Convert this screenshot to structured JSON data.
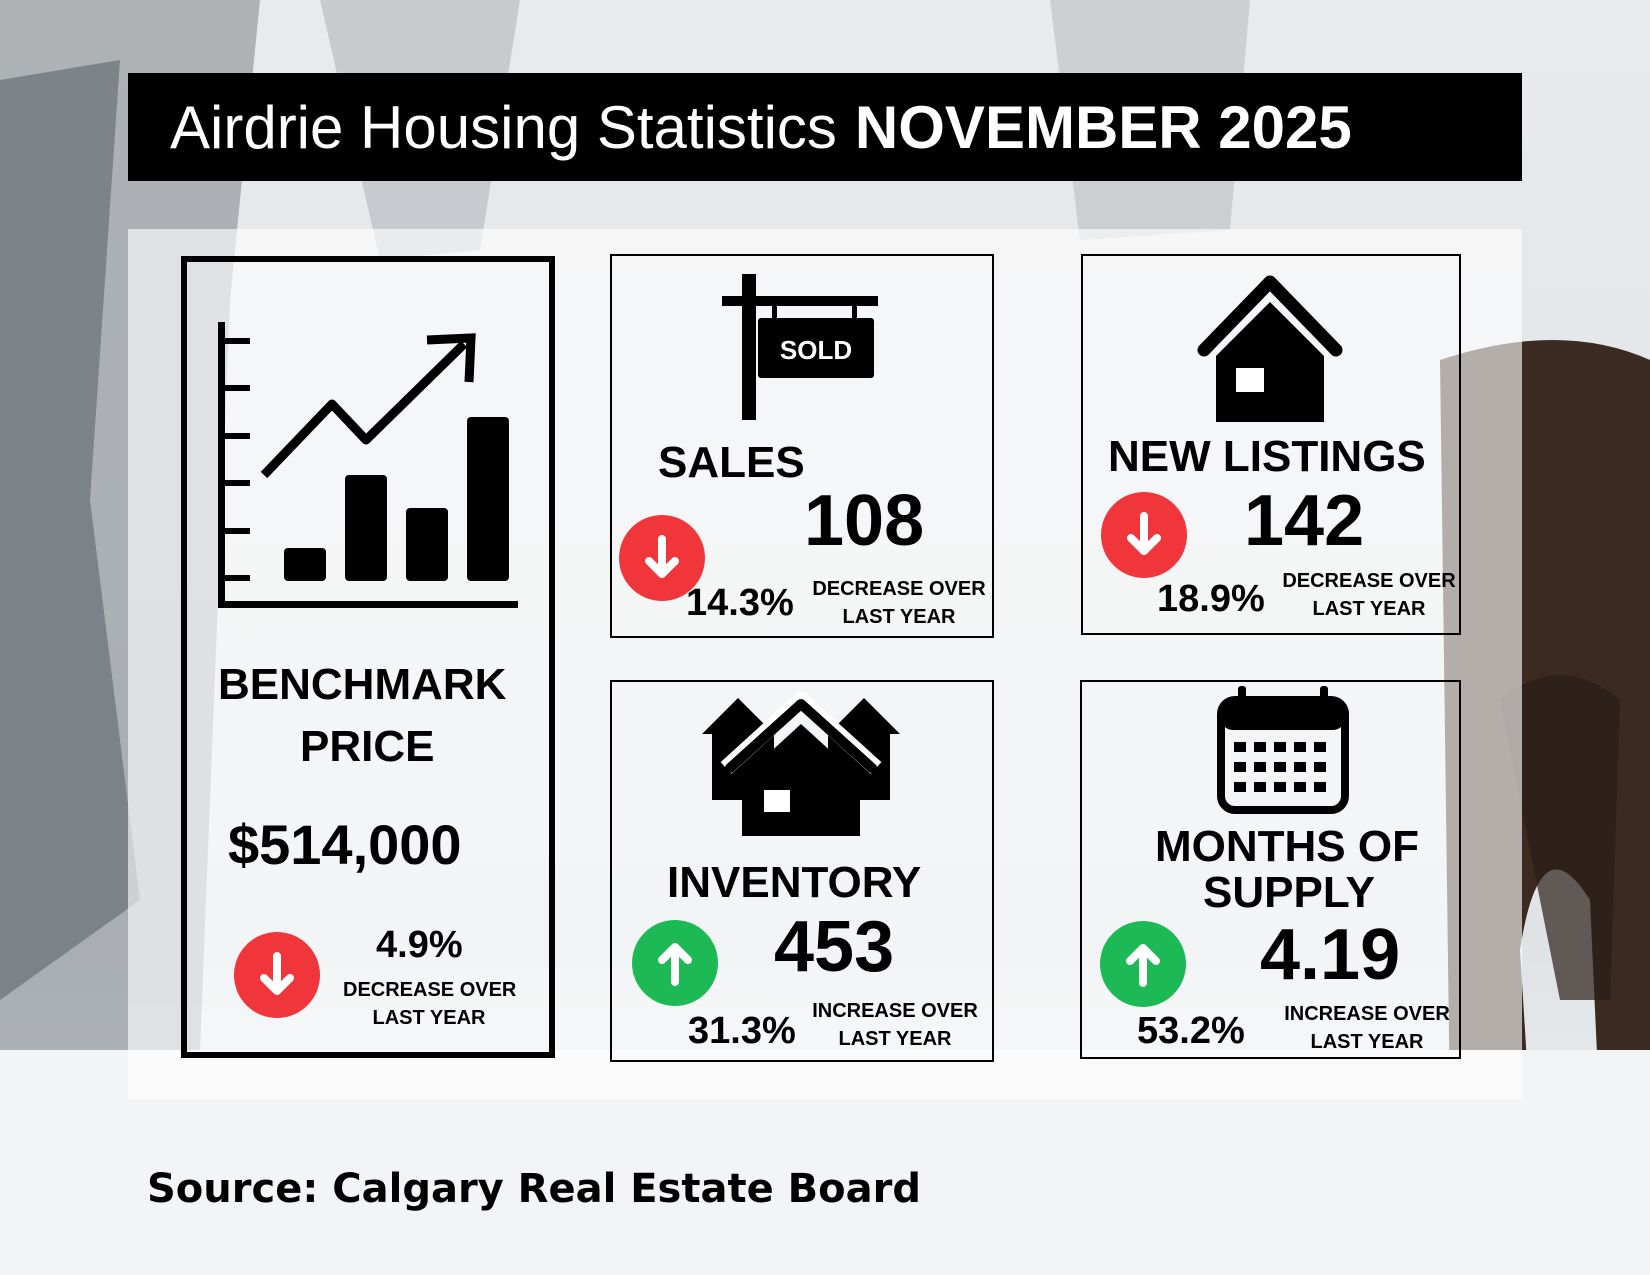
{
  "title": {
    "prefix": "Airdrie Housing Statistics",
    "period": "NOVEMBER 2025"
  },
  "colors": {
    "decrease": "#f0353b",
    "increase": "#1db954",
    "title_bg": "#000000"
  },
  "benchmark": {
    "label_line1": "BENCHMARK",
    "label_line2": "PRICE",
    "value": "$514,000",
    "change_pct": "4.9%",
    "change_line1": "DECREASE OVER",
    "change_line2": "LAST YEAR",
    "icon": "bar-chart-up-arrow-icon",
    "direction": "down"
  },
  "sales": {
    "label": "SALES",
    "value": "108",
    "change_pct": "14.3%",
    "change_line1": "DECREASE OVER",
    "change_line2": "LAST YEAR",
    "sign_text": "SOLD",
    "icon": "sold-sign-icon",
    "direction": "down"
  },
  "new_listings": {
    "label": "NEW LISTINGS",
    "value": "142",
    "change_pct": "18.9%",
    "change_line1": "DECREASE OVER",
    "change_line2": "LAST YEAR",
    "icon": "house-icon",
    "direction": "down"
  },
  "inventory": {
    "label": "INVENTORY",
    "value": "453",
    "change_pct": "31.3%",
    "change_line1": "INCREASE OVER",
    "change_line2": "LAST YEAR",
    "icon": "houses-icon",
    "direction": "up"
  },
  "months_supply": {
    "label_line1": "MONTHS OF",
    "label_line2": "SUPPLY",
    "value": "4.19",
    "change_pct": "53.2%",
    "change_line1": "INCREASE OVER",
    "change_line2": "LAST YEAR",
    "icon": "calendar-icon",
    "direction": "up"
  },
  "source": "Source: Calgary Real Estate Board"
}
